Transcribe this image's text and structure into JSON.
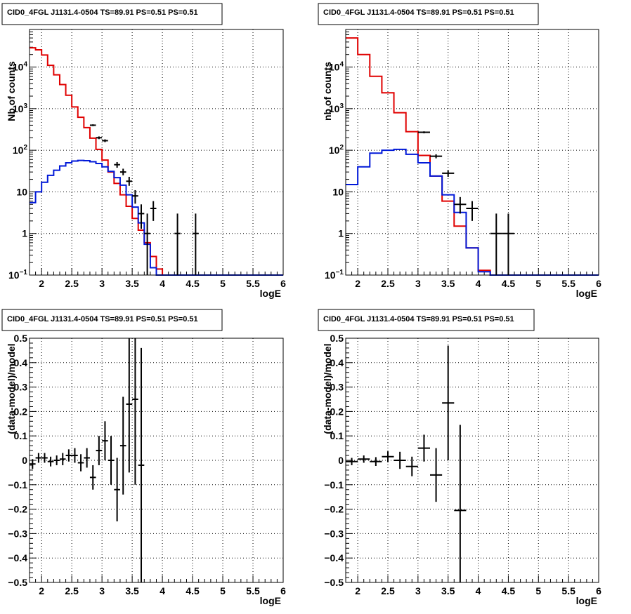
{
  "colors": {
    "data": "#000000",
    "model_total": "#e00000",
    "model_bkg": "#0018d8"
  },
  "chart_data": [
    {
      "type": "line",
      "title": "CID0_4FGL J1131.4-0504 TS=89.91 PS=0.51 PS=0.51",
      "xlabel": "logE",
      "ylabel": "Nb of counts",
      "xlim": [
        1.8,
        6.0
      ],
      "ylim": [
        0.1,
        80000
      ],
      "yscale": "log",
      "grid": true,
      "x_ticks": [
        "2",
        "2.5",
        "3",
        "3.5",
        "4",
        "4.5",
        "5",
        "5.5",
        "6"
      ],
      "y_ticks": [
        "10^-1",
        "1",
        "10",
        "10^2",
        "10^3",
        "10^4"
      ],
      "bin_edges": [
        1.8,
        1.9,
        2.0,
        2.1,
        2.2,
        2.3,
        2.4,
        2.5,
        2.6,
        2.7,
        2.8,
        2.9,
        3.0,
        3.1,
        3.2,
        3.3,
        3.4,
        3.5,
        3.6,
        3.7,
        3.8,
        3.9,
        4.0,
        4.1,
        4.2,
        4.3,
        4.4,
        4.5,
        4.6,
        4.7,
        4.8,
        4.9,
        5.0,
        5.1,
        5.2,
        5.3,
        5.4,
        5.5,
        5.6,
        5.7,
        5.8,
        5.9,
        6.0
      ],
      "series": [
        {
          "role": "model_total",
          "values": [
            29000,
            26000,
            19500,
            11000,
            6500,
            3800,
            2100,
            1100,
            620,
            350,
            195,
            105,
            58,
            30,
            16,
            8.5,
            4.5,
            2.3,
            1.2,
            0.6,
            0.28,
            0.14,
            0.1,
            0.1,
            0.1,
            0.1,
            0.1,
            0.1,
            0.1,
            0.1,
            0.1,
            0.1,
            0.1,
            0.1,
            0.1,
            0.1,
            0.1,
            0.1,
            0.1,
            0.1,
            0.1,
            0.1
          ]
        },
        {
          "role": "model_bkg",
          "values": [
            5.5,
            10,
            17,
            25,
            33,
            42,
            50,
            55,
            57,
            56,
            53,
            48,
            40,
            31,
            22,
            14.5,
            8.5,
            4.3,
            1.8,
            0.55,
            0.15,
            0.1,
            0.1,
            0.1,
            0.1,
            0.1,
            0.1,
            0.1,
            0.1,
            0.1,
            0.1,
            0.1,
            0.1,
            0.1,
            0.1,
            0.1,
            0.1,
            0.1,
            0.1,
            0.1,
            0.1,
            0.1
          ]
        }
      ],
      "points": [
        {
          "x": 2.85,
          "y": 400,
          "ylo": 380,
          "yhi": 420,
          "xerr": 0.05
        },
        {
          "x": 2.95,
          "y": 200,
          "ylo": 185,
          "yhi": 215,
          "xerr": 0.05
        },
        {
          "x": 3.05,
          "y": 170,
          "ylo": 157,
          "yhi": 183,
          "xerr": 0.05
        },
        {
          "x": 3.25,
          "y": 45,
          "ylo": 38,
          "yhi": 52,
          "xerr": 0.05
        },
        {
          "x": 3.35,
          "y": 30,
          "ylo": 25,
          "yhi": 36,
          "xerr": 0.05
        },
        {
          "x": 3.45,
          "y": 18,
          "ylo": 14,
          "yhi": 23,
          "xerr": 0.05
        },
        {
          "x": 3.55,
          "y": 8,
          "ylo": 5.2,
          "yhi": 11,
          "xerr": 0.05
        },
        {
          "x": 3.65,
          "y": 3,
          "ylo": 1.3,
          "yhi": 5,
          "xerr": 0.05
        },
        {
          "x": 3.75,
          "y": 1,
          "ylo": 0.1,
          "yhi": 3,
          "xerr": 0.05
        },
        {
          "x": 3.85,
          "y": 4,
          "ylo": 2,
          "yhi": 6,
          "xerr": 0.05
        },
        {
          "x": 4.25,
          "y": 1,
          "ylo": 0.1,
          "yhi": 3,
          "xerr": 0.05
        },
        {
          "x": 4.55,
          "y": 1,
          "ylo": 0.1,
          "yhi": 3,
          "xerr": 0.05
        }
      ]
    },
    {
      "type": "line",
      "title": "CID0_4FGL J1131.4-0504 TS=89.91 PS=0.51 PS=0.51",
      "xlabel": "logE",
      "ylabel": "nb of counts",
      "xlim": [
        1.8,
        6.0
      ],
      "ylim": [
        0.1,
        80000
      ],
      "yscale": "log",
      "grid": true,
      "x_ticks": [
        "2",
        "2.5",
        "3",
        "3.5",
        "4",
        "4.5",
        "5",
        "5.5",
        "6"
      ],
      "y_ticks": [
        "10^-1",
        "1",
        "10",
        "10^2",
        "10^3",
        "10^4"
      ],
      "bin_edges": [
        1.8,
        2.0,
        2.2,
        2.4,
        2.6,
        2.8,
        3.0,
        3.2,
        3.4,
        3.6,
        3.8,
        4.0,
        4.2,
        4.4,
        4.6,
        4.8,
        5.0,
        5.2,
        5.4,
        5.6,
        5.8,
        6.0
      ],
      "series": [
        {
          "role": "model_total",
          "values": [
            50000,
            20000,
            6000,
            2400,
            800,
            280,
            75,
            24,
            6,
            1.5,
            0.45,
            0.13,
            0.1,
            0.1,
            0.1,
            0.1,
            0.1,
            0.1,
            0.1,
            0.1,
            0.1
          ]
        },
        {
          "role": "model_bkg",
          "values": [
            15,
            40,
            85,
            100,
            105,
            80,
            50,
            24,
            8.5,
            3.2,
            0.45,
            0.12,
            0.1,
            0.1,
            0.1,
            0.1,
            0.1,
            0.1,
            0.1,
            0.1,
            0.1
          ]
        }
      ],
      "points": [
        {
          "x": 3.1,
          "y": 270,
          "ylo": 255,
          "yhi": 285,
          "xerr": 0.1
        },
        {
          "x": 3.3,
          "y": 72,
          "ylo": 64,
          "yhi": 80,
          "xerr": 0.1
        },
        {
          "x": 3.5,
          "y": 28,
          "ylo": 23,
          "yhi": 33,
          "xerr": 0.1
        },
        {
          "x": 3.7,
          "y": 5,
          "ylo": 3,
          "yhi": 7.5,
          "xerr": 0.1
        },
        {
          "x": 3.9,
          "y": 4,
          "ylo": 2,
          "yhi": 6,
          "xerr": 0.1
        },
        {
          "x": 4.3,
          "y": 1,
          "ylo": 0.1,
          "yhi": 3,
          "xerr": 0.1
        },
        {
          "x": 4.5,
          "y": 1,
          "ylo": 0.1,
          "yhi": 3,
          "xerr": 0.1
        }
      ]
    },
    {
      "type": "scatter",
      "title": "CID0_4FGL J1131.4-0504 TS=89.91 PS=0.51 PS=0.51",
      "xlabel": "logE",
      "ylabel": "(data-model)/model",
      "xlim": [
        1.8,
        6.0
      ],
      "ylim": [
        -0.5,
        0.5
      ],
      "grid": true,
      "x_ticks": [
        "2",
        "2.5",
        "3",
        "3.5",
        "4",
        "4.5",
        "5",
        "5.5",
        "6"
      ],
      "y_ticks": [
        "-0.5",
        "-0.4",
        "-0.3",
        "-0.2",
        "-0.1",
        "0",
        "0.1",
        "0.2",
        "0.3",
        "0.4",
        "0.5"
      ],
      "points": [
        {
          "x": 1.85,
          "y": -0.015,
          "yerr": 0.02,
          "xerr": 0.05
        },
        {
          "x": 1.95,
          "y": 0.01,
          "yerr": 0.02,
          "xerr": 0.05
        },
        {
          "x": 2.05,
          "y": 0.01,
          "yerr": 0.02,
          "xerr": 0.05
        },
        {
          "x": 2.15,
          "y": -0.005,
          "yerr": 0.02,
          "xerr": 0.05
        },
        {
          "x": 2.25,
          "y": 0.0,
          "yerr": 0.02,
          "xerr": 0.05
        },
        {
          "x": 2.35,
          "y": 0.005,
          "yerr": 0.025,
          "xerr": 0.05
        },
        {
          "x": 2.45,
          "y": 0.02,
          "yerr": 0.025,
          "xerr": 0.05
        },
        {
          "x": 2.55,
          "y": 0.02,
          "yerr": 0.03,
          "xerr": 0.05
        },
        {
          "x": 2.65,
          "y": -0.01,
          "yerr": 0.035,
          "xerr": 0.05
        },
        {
          "x": 2.75,
          "y": 0.01,
          "yerr": 0.04,
          "xerr": 0.05
        },
        {
          "x": 2.85,
          "y": -0.07,
          "yerr": 0.05,
          "xerr": 0.05
        },
        {
          "x": 2.95,
          "y": 0.04,
          "yerr": 0.06,
          "xerr": 0.05
        },
        {
          "x": 3.05,
          "y": 0.08,
          "yerr": 0.08,
          "xerr": 0.05
        },
        {
          "x": 3.15,
          "y": 0.0,
          "yerr": 0.1,
          "xerr": 0.05
        },
        {
          "x": 3.25,
          "y": -0.12,
          "yerr": 0.13,
          "xerr": 0.05
        },
        {
          "x": 3.35,
          "y": 0.06,
          "yerr": 0.2,
          "xerr": 0.05
        },
        {
          "x": 3.45,
          "y": 0.23,
          "yerr": 0.28,
          "xerr": 0.05
        },
        {
          "x": 3.55,
          "y": 0.25,
          "yerr": 0.35,
          "xerr": 0.05
        },
        {
          "x": 3.65,
          "y": -0.02,
          "yerr": 0.48,
          "xerr": 0.05
        }
      ]
    },
    {
      "type": "scatter",
      "title": "CID0_4FGL J1131.4-0504 TS=89.91 PS=0.51 PS=0.51",
      "xlabel": "logE",
      "ylabel": "(data-model)/model",
      "xlim": [
        1.8,
        6.0
      ],
      "ylim": [
        -0.5,
        0.5
      ],
      "grid": true,
      "x_ticks": [
        "2",
        "2.5",
        "3",
        "3.5",
        "4",
        "4.5",
        "5",
        "5.5",
        "6"
      ],
      "y_ticks": [
        "-0.5",
        "-0.4",
        "-0.3",
        "-0.2",
        "-0.1",
        "0",
        "0.1",
        "0.2",
        "0.3",
        "0.4",
        "0.5"
      ],
      "points": [
        {
          "x": 1.9,
          "y": -0.005,
          "yerr": 0.015,
          "xerr": 0.1
        },
        {
          "x": 2.1,
          "y": 0.005,
          "yerr": 0.015,
          "xerr": 0.1
        },
        {
          "x": 2.3,
          "y": -0.005,
          "yerr": 0.018,
          "xerr": 0.1
        },
        {
          "x": 2.5,
          "y": 0.015,
          "yerr": 0.022,
          "xerr": 0.1
        },
        {
          "x": 2.7,
          "y": 0.0,
          "yerr": 0.035,
          "xerr": 0.1
        },
        {
          "x": 2.9,
          "y": -0.025,
          "yerr": 0.04,
          "xerr": 0.1
        },
        {
          "x": 3.1,
          "y": 0.05,
          "yerr": 0.055,
          "xerr": 0.1
        },
        {
          "x": 3.3,
          "y": -0.06,
          "yerr": 0.11,
          "xerr": 0.1
        },
        {
          "x": 3.5,
          "y": 0.235,
          "yerr": 0.235,
          "xerr": 0.1
        },
        {
          "x": 3.7,
          "y": -0.205,
          "yerr": 0.35,
          "xerr": 0.1
        }
      ]
    }
  ]
}
